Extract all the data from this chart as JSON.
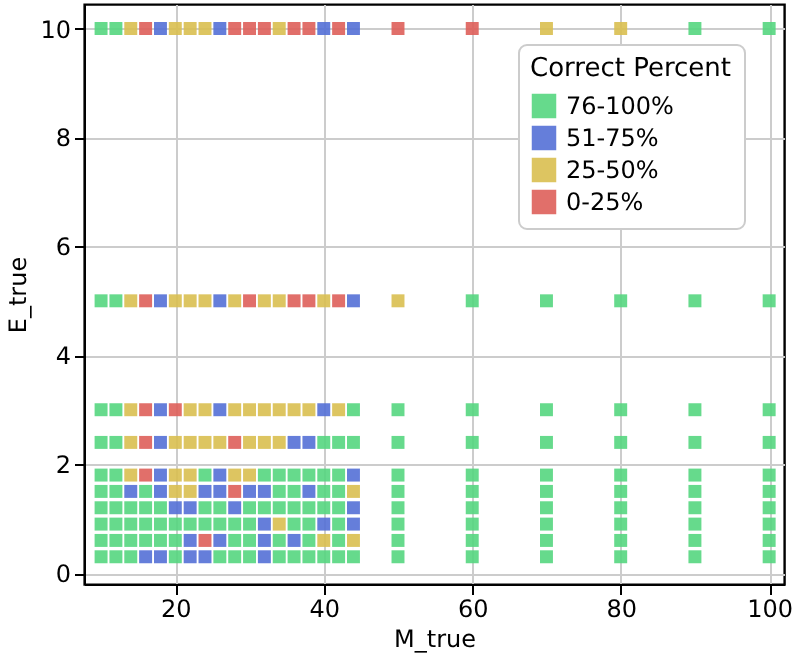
{
  "chart_data": {
    "type": "scatter",
    "xlabel": "M_true",
    "ylabel": "E_true",
    "legend_title": "Correct Percent",
    "legend": "top right",
    "grid": true,
    "marker": "square",
    "xlim": [
      7.7,
      102
    ],
    "ylim": [
      -0.2,
      10.45
    ],
    "xticks": [
      20,
      40,
      60,
      80,
      100
    ],
    "yticks": [
      0,
      2,
      4,
      6,
      8,
      10
    ],
    "series": [
      {
        "name": "76-100%",
        "color": "#55d67f",
        "x": [
          10,
          12,
          90,
          100,
          10,
          12,
          60,
          70,
          80,
          90,
          100,
          10,
          12,
          44,
          50,
          60,
          70,
          80,
          90,
          100,
          10,
          12,
          40,
          42,
          44,
          50,
          60,
          70,
          80,
          90,
          100,
          10,
          12,
          24,
          32,
          34,
          36,
          38,
          40,
          42,
          50,
          60,
          70,
          80,
          90,
          100,
          10,
          12,
          16,
          34,
          36,
          40,
          42,
          50,
          60,
          70,
          80,
          90,
          100,
          10,
          12,
          14,
          16,
          18,
          24,
          26,
          30,
          32,
          34,
          36,
          38,
          40,
          42,
          50,
          60,
          70,
          80,
          90,
          100,
          10,
          12,
          14,
          16,
          18,
          20,
          22,
          24,
          26,
          28,
          30,
          36,
          38,
          42,
          50,
          60,
          70,
          80,
          90,
          100,
          10,
          12,
          14,
          16,
          18,
          20,
          28,
          30,
          34,
          38,
          42,
          50,
          60,
          70,
          80,
          90,
          100,
          10,
          12,
          14,
          20,
          26,
          28,
          30,
          34,
          36,
          38,
          40,
          42,
          44,
          50,
          60,
          70,
          80,
          90,
          100
        ],
        "values": [
          10,
          10,
          10,
          10,
          5,
          5,
          5,
          5,
          5,
          5,
          5,
          3,
          3,
          3,
          3,
          3,
          3,
          3,
          3,
          3,
          2.4,
          2.4,
          2.4,
          2.4,
          2.4,
          2.4,
          2.4,
          2.4,
          2.4,
          2.4,
          2.4,
          1.8,
          1.8,
          1.8,
          1.8,
          1.8,
          1.8,
          1.8,
          1.8,
          1.8,
          1.8,
          1.8,
          1.8,
          1.8,
          1.8,
          1.8,
          1.5,
          1.5,
          1.5,
          1.5,
          1.5,
          1.5,
          1.5,
          1.5,
          1.5,
          1.5,
          1.5,
          1.5,
          1.5,
          1.2,
          1.2,
          1.2,
          1.2,
          1.2,
          1.2,
          1.2,
          1.2,
          1.2,
          1.2,
          1.2,
          1.2,
          1.2,
          1.2,
          1.2,
          1.2,
          1.2,
          1.2,
          1.2,
          1.2,
          0.9,
          0.9,
          0.9,
          0.9,
          0.9,
          0.9,
          0.9,
          0.9,
          0.9,
          0.9,
          0.9,
          0.9,
          0.9,
          0.9,
          0.9,
          0.9,
          0.9,
          0.9,
          0.9,
          0.9,
          0.6,
          0.6,
          0.6,
          0.6,
          0.6,
          0.6,
          0.6,
          0.6,
          0.6,
          0.6,
          0.6,
          0.6,
          0.6,
          0.6,
          0.6,
          0.6,
          0.6,
          0.3,
          0.3,
          0.3,
          0.3,
          0.3,
          0.3,
          0.3,
          0.3,
          0.3,
          0.3,
          0.3,
          0.3,
          0.3,
          0.3,
          0.3,
          0.3,
          0.3,
          0.3,
          0.3
        ]
      },
      {
        "name": "51-75%",
        "color": "#5470d6",
        "x": [
          18,
          26,
          40,
          44,
          18,
          26,
          44,
          18,
          26,
          40,
          18,
          36,
          38,
          18,
          26,
          44,
          14,
          18,
          24,
          26,
          30,
          32,
          38,
          20,
          22,
          28,
          44,
          32,
          40,
          44,
          22,
          26,
          32,
          36,
          16,
          18,
          22,
          24,
          32
        ],
        "values": [
          10,
          10,
          10,
          10,
          5,
          5,
          5,
          3,
          3,
          3,
          2.4,
          2.4,
          2.4,
          1.8,
          1.8,
          1.8,
          1.5,
          1.5,
          1.5,
          1.5,
          1.5,
          1.5,
          1.5,
          1.2,
          1.2,
          1.2,
          1.2,
          0.9,
          0.9,
          0.9,
          0.6,
          0.6,
          0.6,
          0.6,
          0.3,
          0.3,
          0.3,
          0.3,
          0.3
        ]
      },
      {
        "name": "25-50%",
        "color": "#d9bf50",
        "x": [
          14,
          20,
          22,
          24,
          34,
          70,
          80,
          14,
          20,
          22,
          24,
          28,
          32,
          34,
          40,
          50,
          14,
          22,
          24,
          28,
          30,
          32,
          34,
          36,
          38,
          42,
          14,
          20,
          22,
          24,
          26,
          30,
          32,
          34,
          14,
          20,
          22,
          28,
          30,
          20,
          22,
          44,
          34,
          40,
          44
        ],
        "values": [
          10,
          10,
          10,
          10,
          10,
          10,
          10,
          5,
          5,
          5,
          5,
          5,
          5,
          5,
          5,
          5,
          3,
          3,
          3,
          3,
          3,
          3,
          3,
          3,
          3,
          3,
          2.4,
          2.4,
          2.4,
          2.4,
          2.4,
          2.4,
          2.4,
          2.4,
          1.8,
          1.8,
          1.8,
          1.8,
          1.8,
          1.5,
          1.5,
          1.5,
          0.9,
          0.6,
          0.6
        ]
      },
      {
        "name": "0-25%",
        "color": "#de5f5a",
        "x": [
          16,
          28,
          30,
          32,
          36,
          38,
          42,
          50,
          60,
          16,
          30,
          36,
          38,
          42,
          16,
          20,
          16,
          28,
          16,
          28,
          24
        ],
        "values": [
          10,
          10,
          10,
          10,
          10,
          10,
          10,
          10,
          10,
          5,
          5,
          5,
          5,
          5,
          3,
          3,
          2.4,
          2.4,
          1.8,
          1.5,
          0.6
        ]
      }
    ]
  }
}
